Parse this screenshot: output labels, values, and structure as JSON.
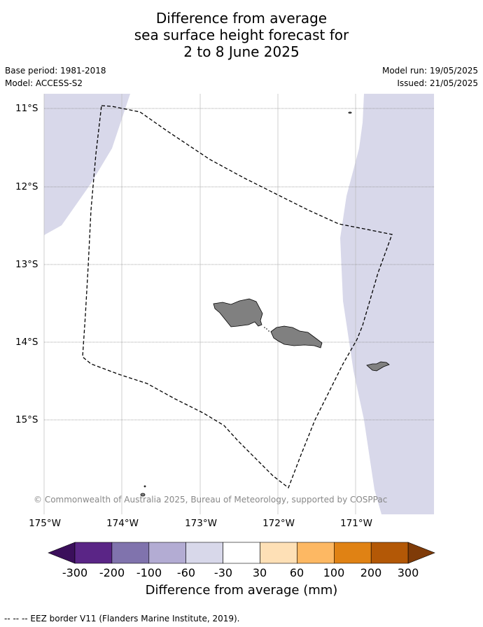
{
  "title": {
    "line1": "Difference from average",
    "line2": "sea surface height forecast for",
    "line3": "2 to 8 June 2025"
  },
  "meta": {
    "base_period": "Base period: 1981-2018",
    "model": "Model: ACCESS-S2",
    "model_run": "Model run: 19/05/2025",
    "issued": "Issued: 21/05/2025"
  },
  "map": {
    "lat_labels": [
      "11°S",
      "12°S",
      "13°S",
      "14°S",
      "15°S"
    ],
    "lon_labels": [
      "175°W",
      "174°W",
      "173°W",
      "172°W",
      "171°W"
    ],
    "credit": "© Commonwealth of Australia 2025, Bureau of Meteorology, supported by COSPPac",
    "colors": {
      "land": "#808080",
      "anomaly_-60_-30": "#d8d8ea",
      "eez_line": "#000000",
      "grid": "#888888"
    }
  },
  "colorbar": {
    "label": "Difference from average (mm)",
    "ticks": [
      "-300",
      "-200",
      "-100",
      "-60",
      "-30",
      "30",
      "60",
      "100",
      "200",
      "300"
    ],
    "colors": [
      "#3b0f5b",
      "#5a2586",
      "#8073ad",
      "#b3acd3",
      "#d8d8ea",
      "#ffffff",
      "#fee0b6",
      "#fdb863",
      "#e08214",
      "#b35806",
      "#7f3b08"
    ]
  },
  "footer": "--  --  -- EEZ border V11 (Flanders Marine Institute, 2019)."
}
